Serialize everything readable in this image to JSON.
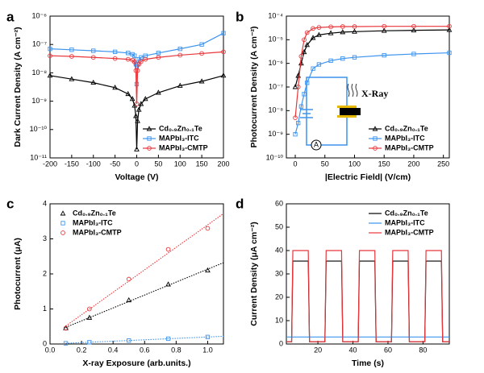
{
  "chart_data": [
    {
      "type": "line",
      "panel": "a",
      "xlabel": "Voltage (V)",
      "ylabel": "Dark Current Density (A cm⁻²)",
      "xlim": [
        -200,
        200
      ],
      "xticks": [
        -200,
        -150,
        -100,
        -50,
        0,
        50,
        100,
        150,
        200
      ],
      "ylog": true,
      "ylim": [
        1e-11,
        1e-06
      ],
      "yticks": [
        {
          "value": 1e-11,
          "label": "10⁻¹¹"
        },
        {
          "value": 1e-10,
          "label": "10⁻¹⁰"
        },
        {
          "value": 1e-09,
          "label": "10⁻⁹"
        },
        {
          "value": 1e-08,
          "label": "10⁻⁸"
        },
        {
          "value": 1e-07,
          "label": "10⁻⁷"
        },
        {
          "value": 1e-06,
          "label": "10⁻⁶"
        }
      ],
      "legend": "lower right",
      "x": [
        -200,
        -150,
        -100,
        -50,
        -20,
        -10,
        -5,
        -2,
        0,
        2,
        5,
        10,
        20,
        50,
        100,
        150,
        200
      ],
      "series": [
        {
          "name": "Cd₀.₉Zn₀.₁Te",
          "color": "#000000",
          "marker": "triangle",
          "values": [
            8e-09,
            6e-09,
            4.5e-09,
            3e-09,
            1.8e-09,
            1.2e-09,
            7e-10,
            3e-10,
            2e-11,
            2e-10,
            5e-10,
            8e-10,
            1.2e-09,
            2e-09,
            3.5e-09,
            5e-09,
            8e-09
          ]
        },
        {
          "name": "MAPbI₃-ITC",
          "color": "#3d94ee",
          "marker": "square",
          "values": [
            7e-08,
            6.5e-08,
            6e-08,
            5.5e-08,
            5e-08,
            4.5e-08,
            4e-08,
            2e-08,
            4e-09,
            2e-08,
            3e-08,
            3.5e-08,
            4e-08,
            5e-08,
            7e-08,
            1e-07,
            2.5e-07
          ]
        },
        {
          "name": "MAPbI₃-CMTP",
          "color": "#e8363a",
          "marker": "circle",
          "values": [
            4e-08,
            3.8e-08,
            3.5e-08,
            3.2e-08,
            3e-08,
            2.8e-08,
            2.4e-08,
            1.2e-08,
            8e-10,
            1.2e-08,
            2e-08,
            2.5e-08,
            3e-08,
            3.5e-08,
            4.2e-08,
            4.8e-08,
            5.5e-08
          ]
        }
      ]
    },
    {
      "type": "line",
      "panel": "b",
      "xlabel": "|Electric Field| (V/cm)",
      "ylabel": "Photocurrent Density (A cm⁻²)",
      "xlim": [
        -15,
        260
      ],
      "xticks": [
        0,
        50,
        100,
        150,
        200,
        250
      ],
      "ylog": true,
      "ylim": [
        1e-10,
        0.0001
      ],
      "yticks": [
        {
          "value": 1e-10,
          "label": "10⁻¹⁰"
        },
        {
          "value": 1e-09,
          "label": "10⁻⁹"
        },
        {
          "value": 1e-08,
          "label": "10⁻⁸"
        },
        {
          "value": 1e-07,
          "label": "10⁻⁷"
        },
        {
          "value": 1e-06,
          "label": "10⁻⁶"
        },
        {
          "value": 1e-05,
          "label": "10⁻⁵"
        },
        {
          "value": 0.0001,
          "label": "10⁻⁴"
        }
      ],
      "legend": "lower right",
      "annotations": [
        "X-Ray",
        "A"
      ],
      "x": [
        0,
        5,
        10,
        15,
        20,
        30,
        40,
        60,
        80,
        100,
        150,
        200,
        260
      ],
      "series": [
        {
          "name": "Cd₀.₉Zn₀.₁Te",
          "color": "#000000",
          "marker": "triangle",
          "values": [
            1e-07,
            3e-07,
            1e-06,
            3e-06,
            6e-06,
            1.2e-05,
            1.6e-05,
            1.9e-05,
            2.1e-05,
            2.2e-05,
            2.4e-05,
            2.5e-05,
            2.6e-05
          ]
        },
        {
          "name": "MAPbI₃-ITC",
          "color": "#3d94ee",
          "marker": "square",
          "values": [
            1e-09,
            3e-09,
            1.5e-08,
            5e-08,
            1.5e-07,
            6e-07,
            9e-07,
            1.3e-06,
            1.6e-06,
            1.8e-06,
            2.2e-06,
            2.5e-06,
            2.8e-06
          ]
        },
        {
          "name": "MAPbI₃-CMTP",
          "color": "#e8363a",
          "marker": "circle",
          "values": [
            5e-09,
            1e-07,
            2e-06,
            1e-05,
            2e-05,
            3e-05,
            3.3e-05,
            3.5e-05,
            3.6e-05,
            3.6e-05,
            3.7e-05,
            3.7e-05,
            3.7e-05
          ]
        }
      ]
    },
    {
      "type": "scatter",
      "panel": "c",
      "xlabel": "X-ray Exposure (arb.units.)",
      "ylabel": "Photocurrent (μA)",
      "xlim": [
        0,
        1.1
      ],
      "xticks": [
        {
          "value": 0,
          "label": "0.0"
        },
        {
          "value": 0.2,
          "label": "0.2"
        },
        {
          "value": 0.4,
          "label": "0.4"
        },
        {
          "value": 0.6,
          "label": "0.6"
        },
        {
          "value": 0.8,
          "label": "0.8"
        },
        {
          "value": 1,
          "label": "1.0"
        }
      ],
      "ylim": [
        0,
        4
      ],
      "yticks": [
        0,
        1,
        2,
        3,
        4
      ],
      "legend": "upper left",
      "fit": true,
      "x": [
        0.1,
        0.25,
        0.5,
        0.75,
        1.0
      ],
      "series": [
        {
          "name": "Cd₀.₉Zn₀.₁Te",
          "color": "#000000",
          "marker": "triangle",
          "values": [
            0.45,
            0.75,
            1.25,
            1.7,
            2.1
          ]
        },
        {
          "name": "MAPbI₃-ITC",
          "color": "#3d94ee",
          "marker": "square",
          "values": [
            0.02,
            0.05,
            0.1,
            0.15,
            0.2
          ]
        },
        {
          "name": "MAPbI₃-CMTP",
          "color": "#e8363a",
          "marker": "circle",
          "values": [
            0.45,
            1.0,
            1.85,
            2.7,
            3.3
          ]
        }
      ]
    },
    {
      "type": "line",
      "panel": "d",
      "xlabel": "Time (s)",
      "ylabel": "Current Density (μA cm⁻²)",
      "xlim": [
        2,
        95
      ],
      "xticks": [
        20,
        40,
        60,
        80
      ],
      "ylim": [
        0,
        60
      ],
      "yticks": [
        0,
        10,
        20,
        30,
        40,
        50,
        60
      ],
      "legend": "upper right",
      "x": [
        2,
        5,
        5.7,
        14.5,
        15.2,
        24,
        24.7,
        33.5,
        34.2,
        43,
        43.7,
        52.5,
        53.2,
        62,
        62.7,
        71.5,
        72.2,
        81,
        81.7,
        90.5,
        91.2,
        95
      ],
      "series": [
        {
          "name": "Cd₀.₉Zn₀.₁Te",
          "color": "#000000",
          "values": [
            1,
            1,
            35.5,
            35.5,
            1,
            1,
            35.5,
            35.5,
            1,
            1,
            35.5,
            35.5,
            1,
            1,
            35.5,
            35.5,
            1,
            1,
            35.5,
            35.5,
            1,
            1
          ]
        },
        {
          "name": "MAPbI₃-ITC",
          "color": "#3d94ee",
          "values": [
            3,
            3,
            3,
            3,
            3,
            3,
            3,
            3,
            3,
            3,
            3,
            3,
            3,
            3,
            3,
            3,
            3,
            3,
            3,
            3,
            3,
            3
          ]
        },
        {
          "name": "MAPbI₃-CMTP",
          "color": "#e8363a",
          "values": [
            1,
            1,
            40,
            40,
            1,
            1,
            40,
            40,
            1,
            1,
            40,
            40,
            1,
            1,
            40,
            40,
            1,
            1,
            40,
            40,
            1,
            1
          ]
        }
      ]
    }
  ]
}
